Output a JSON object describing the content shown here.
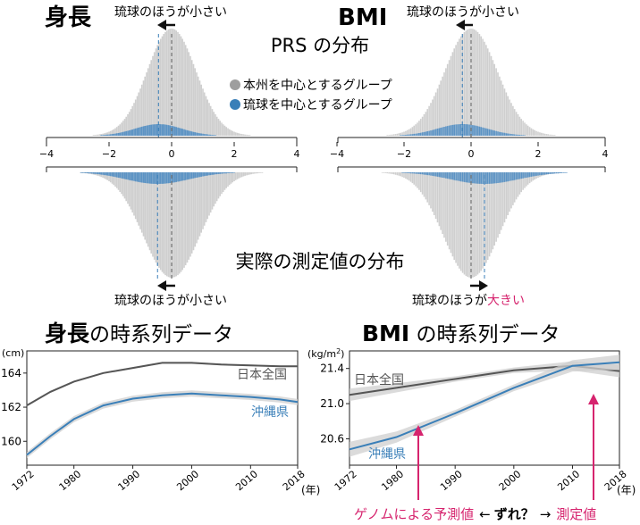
{
  "top_section": {
    "height_title": "身長",
    "bmi_title": "BMI",
    "prs_caption": "PRS の分布",
    "measured_caption": "実際の測定値の分布",
    "legend": [
      {
        "label": "本州を中心とするグループ",
        "color": "#9e9e9e"
      },
      {
        "label": "琉球を中心とするグループ",
        "color": "#3a7fb8"
      }
    ],
    "height_prs_note": "琉球のほうが小さい",
    "bmi_prs_note": "琉球のほうが小さい",
    "height_measured_note": "琉球のほうが小さい",
    "bmi_measured_note_prefix": "琉球のほうが",
    "bmi_measured_note_highlight": "大きい",
    "axis_ticks": [
      "−4",
      "−2",
      "0",
      "2",
      "4"
    ]
  },
  "bottom_section": {
    "height_title_bold": "身長",
    "height_title_rest": "の時系列データ",
    "bmi_title_bold": "BMI",
    "bmi_title_rest": " の時系列データ",
    "height_unit": "(cm)",
    "bmi_unit_main": "(kg/m",
    "bmi_unit_sup": "2",
    "bmi_unit_close": ")",
    "year_unit": "(年)",
    "annotation_predicted": "ゲノムによる予測値",
    "annotation_arrow_left": "←",
    "annotation_question": "ずれ？",
    "annotation_arrow_right": "→",
    "annotation_measured": "測定値",
    "colors": {
      "japan": "#555555",
      "okinawa": "#3a7fb8",
      "band": "#c8c8c8",
      "pink": "#d6246e"
    }
  },
  "chart_data": [
    {
      "type": "line",
      "title": "身長の時系列データ",
      "ylabel": "(cm)",
      "xlabel": "(年)",
      "xlim": [
        1972,
        2018
      ],
      "ylim": [
        158.6,
        165.3
      ],
      "x_ticks": [
        1972,
        1980,
        1990,
        2000,
        2010,
        2018
      ],
      "y_ticks": [
        160,
        162,
        164
      ],
      "series": [
        {
          "name": "日本全国",
          "x": [
            1972,
            1976,
            1980,
            1985,
            1990,
            1995,
            2000,
            2005,
            2010,
            2015,
            2018
          ],
          "y": [
            162.1,
            162.9,
            163.5,
            164.0,
            164.3,
            164.6,
            164.6,
            164.5,
            164.45,
            164.4,
            164.4
          ]
        },
        {
          "name": "沖縄県",
          "x": [
            1972,
            1976,
            1980,
            1985,
            1990,
            1995,
            2000,
            2005,
            2010,
            2015,
            2018
          ],
          "y": [
            159.2,
            160.3,
            161.3,
            162.1,
            162.5,
            162.7,
            162.8,
            162.7,
            162.6,
            162.45,
            162.3
          ]
        }
      ]
    },
    {
      "type": "line",
      "title": "BMI の時系列データ",
      "ylabel": "(kg/m2)",
      "xlabel": "(年)",
      "xlim": [
        1972,
        2018
      ],
      "ylim": [
        20.3,
        21.6
      ],
      "x_ticks": [
        1972,
        1980,
        1990,
        2000,
        2010,
        2018
      ],
      "y_ticks": [
        20.6,
        21.0,
        21.4
      ],
      "series": [
        {
          "name": "日本全国",
          "x": [
            1972,
            1980,
            1990,
            2000,
            2010,
            2018
          ],
          "y": [
            21.1,
            21.18,
            21.28,
            21.38,
            21.43,
            21.37
          ]
        },
        {
          "name": "沖縄県",
          "x": [
            1972,
            1980,
            1990,
            2000,
            2010,
            2018
          ],
          "y": [
            20.48,
            20.62,
            20.89,
            21.18,
            21.43,
            21.47
          ]
        }
      ]
    }
  ]
}
